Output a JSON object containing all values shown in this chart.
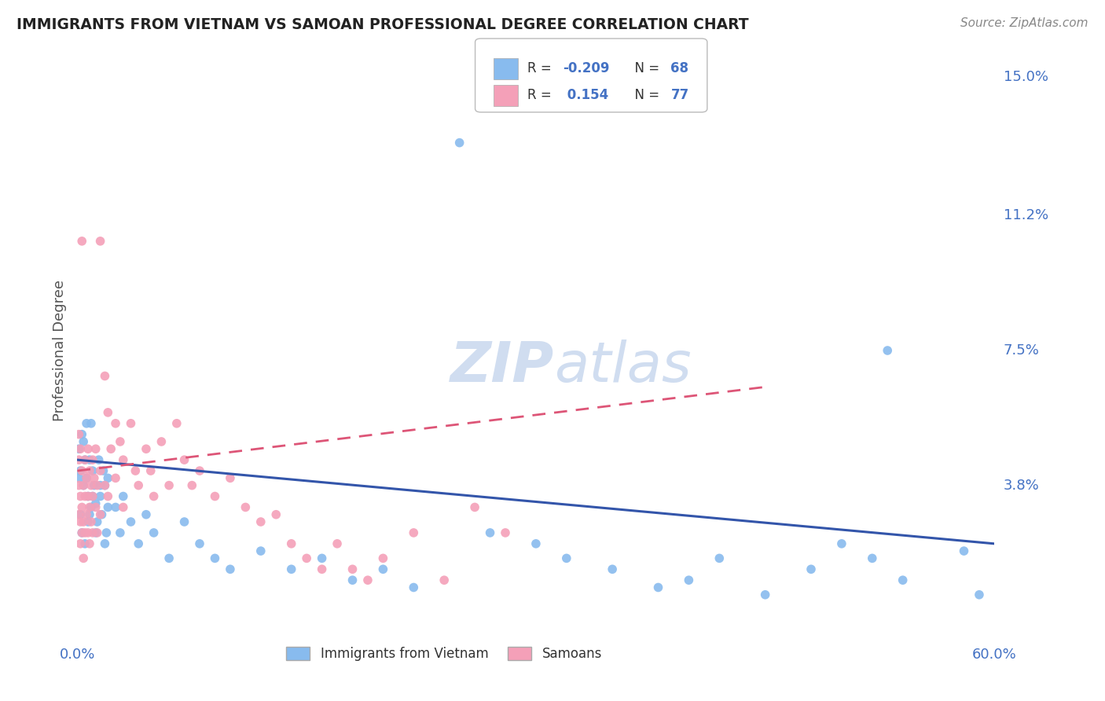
{
  "title": "IMMIGRANTS FROM VIETNAM VS SAMOAN PROFESSIONAL DEGREE CORRELATION CHART",
  "source": "Source: ZipAtlas.com",
  "ylabel": "Professional Degree",
  "legend_label_blue": "Immigrants from Vietnam",
  "legend_label_pink": "Samoans",
  "xmin": 0.0,
  "xmax": 0.6,
  "ymin": 0.0,
  "ymax": 0.15,
  "blue_color": "#88BBEE",
  "pink_color": "#F4A0B8",
  "blue_line_color": "#3355AA",
  "pink_line_color": "#DD5577",
  "axis_label_color": "#4472c4",
  "title_color": "#222222",
  "source_color": "#888888",
  "grid_color": "#dddddd",
  "background_color": "#ffffff",
  "watermark_color": "#d0ddf0",
  "ytick_vals": [
    0.038,
    0.075,
    0.112,
    0.15
  ],
  "ytick_labels": [
    "3.8%",
    "7.5%",
    "11.2%",
    "15.0%"
  ],
  "blue_R": -0.209,
  "blue_N": 68,
  "pink_R": 0.154,
  "pink_N": 77,
  "blue_points": [
    [
      0.001,
      0.048
    ],
    [
      0.002,
      0.042
    ],
    [
      0.003,
      0.052
    ],
    [
      0.004,
      0.038
    ],
    [
      0.005,
      0.045
    ],
    [
      0.006,
      0.04
    ],
    [
      0.007,
      0.035
    ],
    [
      0.008,
      0.03
    ],
    [
      0.009,
      0.055
    ],
    [
      0.01,
      0.042
    ],
    [
      0.011,
      0.038
    ],
    [
      0.012,
      0.033
    ],
    [
      0.013,
      0.028
    ],
    [
      0.014,
      0.045
    ],
    [
      0.015,
      0.035
    ],
    [
      0.016,
      0.03
    ],
    [
      0.017,
      0.042
    ],
    [
      0.018,
      0.038
    ],
    [
      0.019,
      0.025
    ],
    [
      0.02,
      0.032
    ],
    [
      0.001,
      0.04
    ],
    [
      0.002,
      0.03
    ],
    [
      0.003,
      0.025
    ],
    [
      0.004,
      0.05
    ],
    [
      0.005,
      0.022
    ],
    [
      0.006,
      0.055
    ],
    [
      0.007,
      0.028
    ],
    [
      0.008,
      0.045
    ],
    [
      0.009,
      0.032
    ],
    [
      0.01,
      0.035
    ],
    [
      0.012,
      0.025
    ],
    [
      0.015,
      0.038
    ],
    [
      0.018,
      0.022
    ],
    [
      0.02,
      0.04
    ],
    [
      0.025,
      0.032
    ],
    [
      0.028,
      0.025
    ],
    [
      0.03,
      0.035
    ],
    [
      0.035,
      0.028
    ],
    [
      0.04,
      0.022
    ],
    [
      0.045,
      0.03
    ],
    [
      0.05,
      0.025
    ],
    [
      0.06,
      0.018
    ],
    [
      0.07,
      0.028
    ],
    [
      0.08,
      0.022
    ],
    [
      0.09,
      0.018
    ],
    [
      0.1,
      0.015
    ],
    [
      0.12,
      0.02
    ],
    [
      0.14,
      0.015
    ],
    [
      0.16,
      0.018
    ],
    [
      0.18,
      0.012
    ],
    [
      0.2,
      0.015
    ],
    [
      0.22,
      0.01
    ],
    [
      0.25,
      0.132
    ],
    [
      0.27,
      0.025
    ],
    [
      0.3,
      0.022
    ],
    [
      0.32,
      0.018
    ],
    [
      0.35,
      0.015
    ],
    [
      0.38,
      0.01
    ],
    [
      0.4,
      0.012
    ],
    [
      0.42,
      0.018
    ],
    [
      0.45,
      0.008
    ],
    [
      0.48,
      0.015
    ],
    [
      0.5,
      0.022
    ],
    [
      0.52,
      0.018
    ],
    [
      0.54,
      0.012
    ],
    [
      0.53,
      0.075
    ],
    [
      0.58,
      0.02
    ],
    [
      0.59,
      0.008
    ]
  ],
  "pink_points": [
    [
      0.001,
      0.052
    ],
    [
      0.001,
      0.045
    ],
    [
      0.001,
      0.038
    ],
    [
      0.001,
      0.03
    ],
    [
      0.002,
      0.048
    ],
    [
      0.002,
      0.035
    ],
    [
      0.002,
      0.028
    ],
    [
      0.002,
      0.022
    ],
    [
      0.003,
      0.105
    ],
    [
      0.003,
      0.042
    ],
    [
      0.003,
      0.032
    ],
    [
      0.003,
      0.025
    ],
    [
      0.004,
      0.038
    ],
    [
      0.004,
      0.028
    ],
    [
      0.004,
      0.018
    ],
    [
      0.005,
      0.045
    ],
    [
      0.005,
      0.035
    ],
    [
      0.005,
      0.025
    ],
    [
      0.006,
      0.04
    ],
    [
      0.006,
      0.03
    ],
    [
      0.007,
      0.048
    ],
    [
      0.007,
      0.035
    ],
    [
      0.007,
      0.025
    ],
    [
      0.008,
      0.042
    ],
    [
      0.008,
      0.032
    ],
    [
      0.008,
      0.022
    ],
    [
      0.009,
      0.038
    ],
    [
      0.009,
      0.028
    ],
    [
      0.01,
      0.045
    ],
    [
      0.01,
      0.035
    ],
    [
      0.01,
      0.025
    ],
    [
      0.011,
      0.04
    ],
    [
      0.012,
      0.048
    ],
    [
      0.012,
      0.032
    ],
    [
      0.013,
      0.038
    ],
    [
      0.013,
      0.025
    ],
    [
      0.015,
      0.105
    ],
    [
      0.015,
      0.042
    ],
    [
      0.015,
      0.03
    ],
    [
      0.018,
      0.068
    ],
    [
      0.018,
      0.038
    ],
    [
      0.02,
      0.058
    ],
    [
      0.02,
      0.035
    ],
    [
      0.022,
      0.048
    ],
    [
      0.025,
      0.055
    ],
    [
      0.025,
      0.04
    ],
    [
      0.028,
      0.05
    ],
    [
      0.03,
      0.045
    ],
    [
      0.03,
      0.032
    ],
    [
      0.035,
      0.055
    ],
    [
      0.038,
      0.042
    ],
    [
      0.04,
      0.038
    ],
    [
      0.045,
      0.048
    ],
    [
      0.048,
      0.042
    ],
    [
      0.05,
      0.035
    ],
    [
      0.055,
      0.05
    ],
    [
      0.06,
      0.038
    ],
    [
      0.065,
      0.055
    ],
    [
      0.07,
      0.045
    ],
    [
      0.075,
      0.038
    ],
    [
      0.08,
      0.042
    ],
    [
      0.09,
      0.035
    ],
    [
      0.1,
      0.04
    ],
    [
      0.11,
      0.032
    ],
    [
      0.12,
      0.028
    ],
    [
      0.13,
      0.03
    ],
    [
      0.14,
      0.022
    ],
    [
      0.15,
      0.018
    ],
    [
      0.16,
      0.015
    ],
    [
      0.17,
      0.022
    ],
    [
      0.18,
      0.015
    ],
    [
      0.19,
      0.012
    ],
    [
      0.2,
      0.018
    ],
    [
      0.22,
      0.025
    ],
    [
      0.24,
      0.012
    ],
    [
      0.26,
      0.032
    ],
    [
      0.28,
      0.025
    ]
  ]
}
